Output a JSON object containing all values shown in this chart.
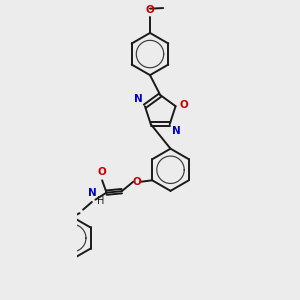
{
  "background_color": "#ececec",
  "bond_color": "#1a1a1a",
  "N_color": "#0000cc",
  "O_color": "#cc0000",
  "lw": 1.4,
  "lw_inner": 0.85,
  "figsize": [
    3.0,
    3.0
  ],
  "dpi": 100,
  "xlim": [
    -1.5,
    3.5
  ],
  "ylim": [
    -4.5,
    5.5
  ]
}
